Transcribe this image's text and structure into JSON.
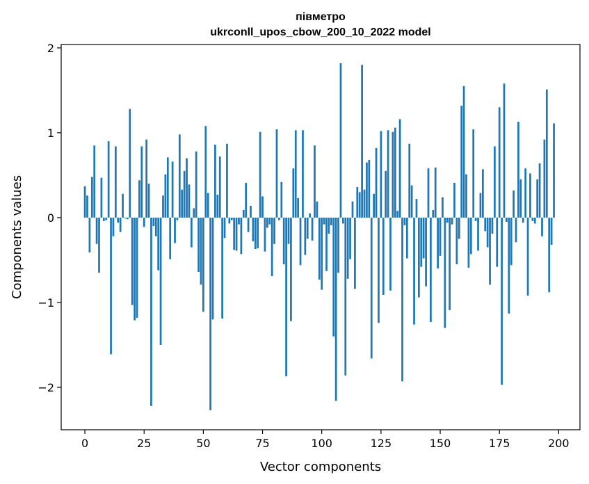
{
  "chart_data": {
    "type": "bar",
    "title_line1": "півметро",
    "title_line2": "ukrconll_upos_cbow_200_10_2022 model",
    "xlabel": "Vector components",
    "ylabel": "Components values",
    "xlim": [
      -10,
      209
    ],
    "ylim": [
      -2.5,
      2.04
    ],
    "xticks": [
      0,
      25,
      50,
      75,
      100,
      125,
      150,
      175,
      200
    ],
    "yticks": [
      -2,
      -1,
      0,
      1,
      2
    ],
    "ytick_labels": [
      "−2",
      "−1",
      "0",
      "1",
      "2"
    ],
    "bar_color": "#1f77b4",
    "bar_width": 0.8,
    "grid": false,
    "values": [
      0.37,
      0.26,
      -0.41,
      0.48,
      0.85,
      -0.31,
      -0.65,
      0.47,
      -0.04,
      -0.03,
      0.9,
      -1.61,
      -0.22,
      0.84,
      -0.06,
      -0.17,
      0.28,
      -0.01,
      -0.02,
      1.28,
      -1.03,
      -1.21,
      -1.18,
      0.44,
      0.84,
      -0.11,
      0.92,
      0.4,
      -2.22,
      -0.1,
      -0.22,
      -0.62,
      -1.5,
      0.26,
      0.51,
      0.71,
      -0.49,
      0.66,
      -0.3,
      -0.03,
      0.98,
      0.33,
      0.55,
      0.7,
      0.39,
      -0.35,
      0.11,
      0.78,
      -0.64,
      -0.79,
      -1.11,
      1.08,
      0.29,
      -2.27,
      -1.2,
      0.86,
      0.27,
      0.72,
      -1.19,
      -0.24,
      0.87,
      -0.07,
      -0.03,
      -0.38,
      -0.39,
      -0.08,
      -0.43,
      0.09,
      0.41,
      -0.17,
      0.14,
      -0.28,
      -0.37,
      -0.36,
      1.01,
      0.25,
      -0.4,
      -0.12,
      -0.08,
      -0.69,
      -0.31,
      1.04,
      -0.03,
      0.42,
      -0.55,
      -1.87,
      -0.31,
      -1.22,
      0.58,
      1.03,
      0.23,
      -0.56,
      1.03,
      -0.44,
      -0.25,
      0.05,
      -0.27,
      0.85,
      0.19,
      -0.73,
      -0.85,
      -0.08,
      -0.63,
      -0.19,
      -0.09,
      -1.4,
      -2.16,
      -0.65,
      1.82,
      -0.07,
      -1.86,
      -0.72,
      -0.49,
      0.19,
      -0.84,
      0.36,
      0.3,
      1.8,
      0.33,
      0.65,
      0.68,
      -1.66,
      0.28,
      0.82,
      -1.24,
      1.02,
      -0.91,
      0.55,
      1.03,
      -0.86,
      1.01,
      1.06,
      0.08,
      1.16,
      -1.93,
      -0.09,
      -0.48,
      0.87,
      0.38,
      -1.26,
      0.22,
      -0.94,
      -0.58,
      -0.48,
      -0.81,
      0.58,
      -1.23,
      0.09,
      0.59,
      -0.6,
      -0.45,
      0.24,
      -1.3,
      -0.06,
      -1.09,
      -0.08,
      0.41,
      -0.55,
      -0.25,
      1.32,
      1.55,
      0.51,
      -0.59,
      -0.43,
      1.04,
      -0.04,
      -0.39,
      0.29,
      0.57,
      -0.16,
      -0.35,
      -0.79,
      -0.19,
      0.84,
      -0.58,
      1.3,
      -1.97,
      1.58,
      -0.05,
      -1.13,
      -0.56,
      0.32,
      -0.29,
      1.13,
      0.45,
      -0.06,
      0.58,
      -0.92,
      0.52,
      -0.04,
      -0.07,
      0.45,
      0.64,
      -0.22,
      0.92,
      1.51,
      -0.88,
      -0.32,
      1.11
    ]
  }
}
